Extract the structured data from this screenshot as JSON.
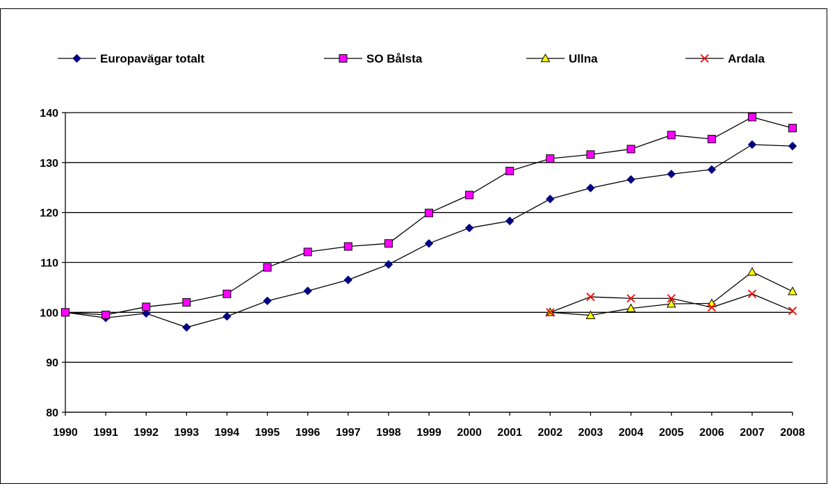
{
  "chart_data": {
    "type": "line",
    "title": "",
    "xlabel": "",
    "ylabel": "",
    "ylim": [
      80,
      140
    ],
    "yticks": [
      80,
      90,
      100,
      110,
      120,
      130,
      140
    ],
    "grid": true,
    "legend_position": "top",
    "categories": [
      "1990",
      "1991",
      "1992",
      "1993",
      "1994",
      "1995",
      "1996",
      "1997",
      "1998",
      "1999",
      "2000",
      "2001",
      "2002",
      "2003",
      "2004",
      "2005",
      "2006",
      "2007",
      "2008"
    ],
    "series": [
      {
        "name": "Europavägar totalt",
        "marker": "diamond",
        "color": "#000080",
        "values": [
          100,
          98.9,
          99.8,
          97,
          99.2,
          102.3,
          104.3,
          106.5,
          109.6,
          113.8,
          116.9,
          118.3,
          122.7,
          124.9,
          126.6,
          127.7,
          128.6,
          133.6,
          133.3
        ]
      },
      {
        "name": "SO Bålsta",
        "marker": "square",
        "color": "#FF00FF",
        "values": [
          100,
          99.5,
          101.1,
          102,
          103.7,
          109,
          112.1,
          113.2,
          113.8,
          119.9,
          123.5,
          128.3,
          130.8,
          131.6,
          132.7,
          135.5,
          134.7,
          139.1,
          136.9
        ]
      },
      {
        "name": "Ullna",
        "marker": "triangle",
        "color": "#FFFF00",
        "values": [
          null,
          null,
          null,
          null,
          null,
          null,
          null,
          null,
          null,
          null,
          null,
          null,
          100,
          99.4,
          100.8,
          101.7,
          101.8,
          108.1,
          104.2
        ]
      },
      {
        "name": "Ardala",
        "marker": "x",
        "color": "#FF0000",
        "values": [
          null,
          null,
          null,
          null,
          null,
          null,
          null,
          null,
          null,
          null,
          null,
          null,
          100,
          103.1,
          102.8,
          102.8,
          101,
          103.7,
          100.3
        ]
      }
    ]
  }
}
